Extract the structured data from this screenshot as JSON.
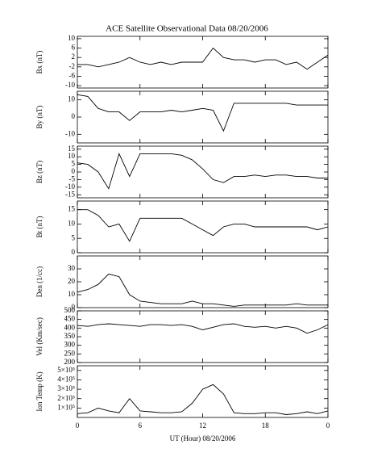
{
  "chart_data": [
    {
      "type": "line",
      "title": "ACE Satellite Observational Data  08/20/2006",
      "ylabel": "Bx (nT)",
      "color": "#000000",
      "x": [
        0,
        1,
        2,
        3,
        4,
        5,
        6,
        7,
        8,
        9,
        10,
        11,
        12,
        13,
        14,
        15,
        16,
        17,
        18,
        19,
        20,
        21,
        22,
        23,
        24
      ],
      "values": [
        -1,
        -1,
        -2,
        -1,
        0,
        2,
        0,
        -1,
        0,
        -1,
        0,
        0,
        0,
        6,
        2,
        1,
        1,
        0,
        1,
        1,
        -1,
        0,
        -3,
        0,
        3
      ],
      "xlim": [
        0,
        24
      ],
      "ylim": [
        -11,
        11
      ],
      "yticks": [
        10,
        6,
        2,
        -2,
        -6,
        -10
      ]
    },
    {
      "type": "line",
      "ylabel": "By (nT)",
      "color": "#000000",
      "x": [
        0,
        1,
        2,
        3,
        4,
        5,
        6,
        7,
        8,
        9,
        10,
        11,
        12,
        13,
        14,
        15,
        16,
        17,
        18,
        19,
        20,
        21,
        22,
        23,
        24
      ],
      "values": [
        13,
        12,
        5,
        3,
        3,
        -2,
        3,
        3,
        3,
        4,
        3,
        4,
        5,
        4,
        -8,
        8,
        8,
        8,
        8,
        8,
        8,
        7,
        7,
        7,
        7
      ],
      "xlim": [
        0,
        24
      ],
      "ylim": [
        -15,
        15
      ],
      "yticks": [
        10,
        0,
        -10
      ]
    },
    {
      "type": "line",
      "ylabel": "Bz (nT)",
      "color": "#000000",
      "x": [
        0,
        1,
        2,
        3,
        4,
        5,
        6,
        7,
        8,
        9,
        10,
        11,
        12,
        13,
        14,
        15,
        16,
        17,
        18,
        19,
        20,
        21,
        22,
        23,
        24
      ],
      "values": [
        6,
        5,
        0,
        -11,
        12,
        -3,
        12,
        12,
        12,
        12,
        11,
        8,
        2,
        -5,
        -7,
        -3,
        -3,
        -2,
        -3,
        -2,
        -2,
        -3,
        -3,
        -4,
        -4
      ],
      "xlim": [
        0,
        24
      ],
      "ylim": [
        -17,
        17
      ],
      "yticks": [
        15,
        10,
        5,
        0,
        -5,
        -10,
        -15
      ]
    },
    {
      "type": "line",
      "ylabel": "Bt (nT)",
      "color": "#000000",
      "x": [
        0,
        1,
        2,
        3,
        4,
        5,
        6,
        7,
        8,
        9,
        10,
        11,
        12,
        13,
        14,
        15,
        16,
        17,
        18,
        19,
        20,
        21,
        22,
        23,
        24
      ],
      "values": [
        15,
        15,
        13,
        9,
        10,
        4,
        12,
        12,
        12,
        12,
        12,
        10,
        8,
        6,
        9,
        10,
        10,
        9,
        9,
        9,
        9,
        9,
        9,
        8,
        9
      ],
      "xlim": [
        0,
        24
      ],
      "ylim": [
        0,
        18
      ],
      "yticks": [
        15,
        10,
        5,
        0
      ]
    },
    {
      "type": "line",
      "ylabel": "Den (1/cc)",
      "color": "#000000",
      "x": [
        0,
        1,
        2,
        3,
        4,
        5,
        6,
        7,
        8,
        9,
        10,
        11,
        12,
        13,
        14,
        15,
        16,
        17,
        18,
        19,
        20,
        21,
        22,
        23,
        24
      ],
      "values": [
        12,
        14,
        18,
        26,
        24,
        10,
        5,
        4,
        3,
        3,
        3,
        5,
        3,
        3,
        2,
        1,
        2,
        2,
        2,
        2,
        2,
        3,
        2,
        2,
        2
      ],
      "xlim": [
        0,
        24
      ],
      "ylim": [
        0,
        40
      ],
      "yticks": [
        30,
        20,
        10,
        0
      ]
    },
    {
      "type": "line",
      "ylabel": "Vel (Km/sec)",
      "color": "#000000",
      "x": [
        0,
        1,
        2,
        3,
        4,
        5,
        6,
        7,
        8,
        9,
        10,
        11,
        12,
        13,
        14,
        15,
        16,
        17,
        18,
        19,
        20,
        21,
        22,
        23,
        24
      ],
      "values": [
        415,
        410,
        420,
        425,
        420,
        415,
        410,
        420,
        420,
        415,
        420,
        410,
        390,
        405,
        420,
        425,
        410,
        405,
        410,
        400,
        410,
        400,
        370,
        390,
        420
      ],
      "xlim": [
        0,
        24
      ],
      "ylim": [
        200,
        500
      ],
      "yticks": [
        500,
        450,
        400,
        350,
        300,
        250,
        200
      ]
    },
    {
      "type": "line",
      "ylabel": "Ion Temp (K)",
      "xlabel": "UT (Hour)  08/20/2006",
      "color": "#000000",
      "x": [
        0,
        1,
        2,
        3,
        4,
        5,
        6,
        7,
        8,
        9,
        10,
        11,
        12,
        13,
        14,
        15,
        16,
        17,
        18,
        19,
        20,
        21,
        22,
        23,
        24
      ],
      "values": [
        40000,
        50000,
        100000,
        70000,
        50000,
        200000,
        70000,
        60000,
        50000,
        50000,
        60000,
        150000,
        300000,
        350000,
        250000,
        50000,
        40000,
        40000,
        50000,
        50000,
        30000,
        40000,
        60000,
        40000,
        70000
      ],
      "xlim": [
        0,
        24
      ],
      "ylim": [
        0,
        550000
      ],
      "yticks": [
        {
          "value": 500000,
          "label": "5×10⁵"
        },
        {
          "value": 400000,
          "label": "4×10⁵"
        },
        {
          "value": 300000,
          "label": "3×10⁵"
        },
        {
          "value": 200000,
          "label": "2×10⁵"
        },
        {
          "value": 100000,
          "label": "1×10⁵"
        }
      ],
      "xticks": [
        0,
        6,
        12,
        18,
        {
          "value": 24,
          "label": "0"
        }
      ]
    }
  ]
}
